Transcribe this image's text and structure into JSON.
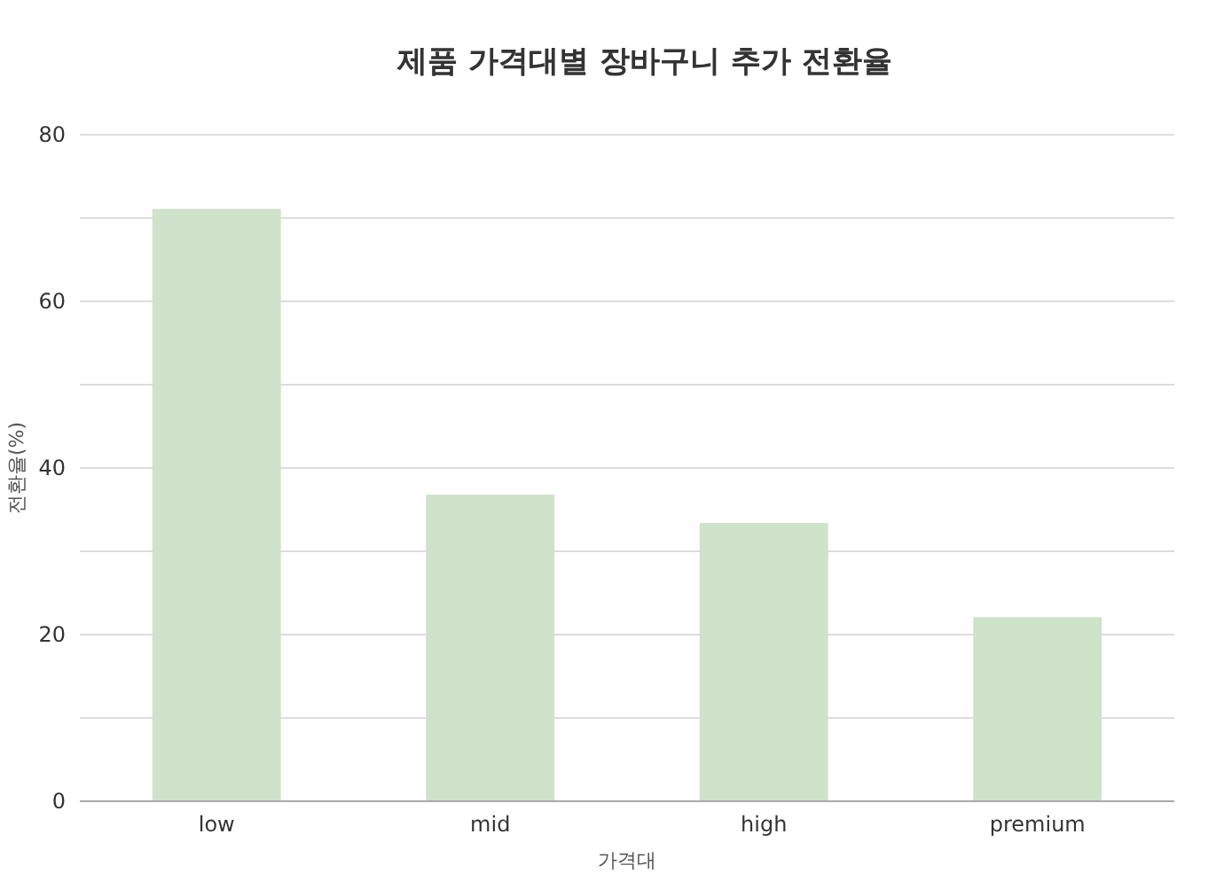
{
  "chart_data": {
    "type": "bar",
    "title": "제품 가격대별 장바구니 추가 전환율",
    "xlabel": "가격대",
    "ylabel": "전환율(%)",
    "categories": [
      "low",
      "mid",
      "high",
      "premium"
    ],
    "values": [
      71.1,
      36.8,
      33.4,
      22.1
    ],
    "color": "#cfe3cb",
    "ylim": [
      0,
      80
    ],
    "yticks": [
      0,
      {
        "value": 10,
        "label": null
      },
      20,
      {
        "value": 30,
        "label": null
      },
      40,
      {
        "value": 50,
        "label": null
      },
      60,
      {
        "value": 70,
        "label": null
      },
      80
    ],
    "grid": "y"
  }
}
